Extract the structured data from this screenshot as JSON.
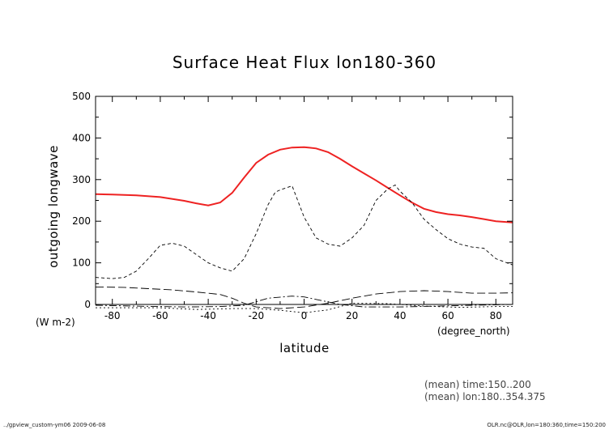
{
  "chart_data": {
    "type": "line",
    "title": "Surface Heat Flux lon180-360",
    "xlabel": "latitude",
    "ylabel": "outgoing longwave",
    "y_unit": "(W m-2)",
    "x_unit": "(degree_north)",
    "xlim": [
      -87,
      87
    ],
    "ylim": [
      0,
      500
    ],
    "x_ticks": [
      -80,
      -60,
      -40,
      -20,
      0,
      20,
      40,
      60,
      80
    ],
    "y_ticks": [
      0,
      100,
      200,
      300,
      400,
      500
    ],
    "grid": false,
    "series": [
      {
        "color": "#ee2222",
        "style": "solid",
        "x": [
          -87,
          -80,
          -70,
          -60,
          -50,
          -45,
          -40,
          -35,
          -30,
          -25,
          -20,
          -15,
          -10,
          -5,
          0,
          5,
          10,
          15,
          20,
          25,
          30,
          35,
          40,
          45,
          50,
          55,
          60,
          65,
          70,
          75,
          80,
          87
        ],
        "y": [
          265,
          264,
          262,
          258,
          249,
          243,
          238,
          245,
          268,
          305,
          340,
          360,
          372,
          377,
          378,
          375,
          366,
          350,
          332,
          315,
          298,
          280,
          262,
          245,
          230,
          222,
          217,
          214,
          210,
          205,
          200,
          197
        ]
      },
      {
        "color": "#000000",
        "style": "dashed",
        "x": [
          -87,
          -80,
          -75,
          -70,
          -65,
          -60,
          -55,
          -50,
          -45,
          -40,
          -35,
          -30,
          -25,
          -20,
          -15,
          -12,
          -10,
          -5,
          0,
          5,
          10,
          15,
          20,
          25,
          30,
          35,
          38,
          40,
          45,
          50,
          55,
          60,
          65,
          70,
          75,
          80,
          87
        ],
        "y": [
          65,
          62,
          65,
          80,
          110,
          142,
          147,
          140,
          120,
          100,
          88,
          80,
          110,
          170,
          240,
          270,
          275,
          285,
          210,
          160,
          145,
          140,
          160,
          190,
          250,
          278,
          287,
          272,
          245,
          205,
          180,
          158,
          145,
          138,
          135,
          110,
          95
        ]
      },
      {
        "color": "#000000",
        "style": "longdash",
        "x": [
          -87,
          -75,
          -65,
          -55,
          -45,
          -35,
          -30,
          -25,
          -20,
          -10,
          0,
          10,
          20,
          30,
          40,
          50,
          60,
          70,
          80,
          87
        ],
        "y": [
          42,
          41,
          38,
          35,
          30,
          24,
          15,
          3,
          -6,
          -10,
          -6,
          3,
          15,
          25,
          31,
          33,
          31,
          27,
          27,
          28
        ]
      },
      {
        "color": "#000000",
        "style": "dashdot",
        "x": [
          -87,
          -70,
          -50,
          -35,
          -25,
          -15,
          -5,
          0,
          5,
          15,
          25,
          40,
          55,
          70,
          87
        ],
        "y": [
          -2,
          -4,
          -6,
          -5,
          -2,
          15,
          20,
          18,
          12,
          0,
          -6,
          -6,
          -4,
          -2,
          0
        ]
      },
      {
        "color": "#000000",
        "style": "dotted",
        "x": [
          -87,
          -60,
          -45,
          -30,
          -20,
          -10,
          0,
          10,
          20,
          35,
          50,
          65,
          80,
          87
        ],
        "y": [
          -8,
          -8,
          -12,
          -10,
          -10,
          -14,
          -20,
          -13,
          3,
          2,
          -4,
          -7,
          -5,
          -5
        ]
      }
    ]
  },
  "notes": {
    "time": "(mean) time:150..200",
    "lon": "(mean) lon:180..354.375"
  },
  "footer": {
    "left": "../gpview_custom-ym06  2009-06-08",
    "right": "OLR.nc@OLR,lon=180:360,time=150:200"
  }
}
